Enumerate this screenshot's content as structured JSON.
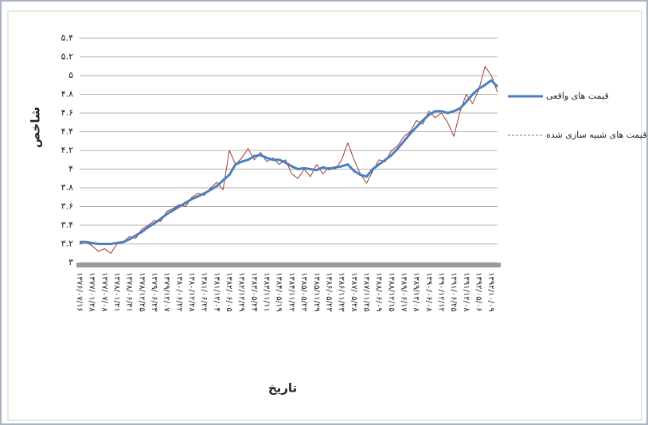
{
  "chart_data": {
    "type": "line",
    "ylabel": "شاخص",
    "xlabel": "تاریخ",
    "categories": [
      "۱۳۷۶/۰۷/۱۶",
      null,
      "۱۳۷۷/۰۱/۲۸",
      null,
      "۱۳۷۷/۰۷/۰۸",
      null,
      "۱۳۷۸/۰۱/۲۱",
      null,
      "۱۳۷۸/۰۶/۳۱",
      null,
      "۱۳۷۸/۱۲/۲۵",
      null,
      "۱۳۷۹/۰۶/۲۳",
      null,
      "۱۳۷۹/۱۲/۰۷",
      null,
      "۱۳۸۰/۰۶/۲۲",
      null,
      "۱۳۸۰/۱۲/۲۸",
      null,
      "۱۳۸۱/۰۶/۲۲",
      null,
      "۱۳۸۱/۱۲/۰۴",
      null,
      "۱۳۸۲/۰۶/۰۵",
      null,
      "۱۳۸۲/۱۲/۲۹",
      null,
      "۱۳۸۳/۰۵/۲۴",
      null,
      "۱۳۸۳/۱۱/۱۱",
      null,
      "۱۳۸۴/۰۵/۱۹",
      null,
      "۱۳۸۴/۱۱/۲۲",
      null,
      "۱۳۸۵/۰۵/۲۲",
      null,
      "۱۳۸۵/۱۱/۲۹",
      null,
      "۱۳۸۶/۰۵/۲۳",
      null,
      "۱۳۸۶/۱۱/۲۳",
      null,
      "۱۳۸۷/۰۵/۲۸",
      null,
      "۱۳۸۷/۱۱/۲۵",
      null,
      "۱۳۸۸/۰۶/۰۹",
      null,
      "۱۳۸۸/۱۲/۱۵",
      null,
      "۱۳۸۹/۰۶/۱۷",
      null,
      "۱۳۸۹/۱۲/۰۸",
      null,
      "۱۳۹۰/۰۶/۰۸",
      null,
      "۱۳۹۰/۱۲/۱۲",
      null,
      "۱۳۹۱/۰۶/۲۵",
      null,
      "۱۳۹۱/۱۲/۰۸",
      null,
      "۱۳۹۲/۰۵/۰۶",
      null,
      "۱۳۹۲/۱۰/۰۹",
      null
    ],
    "series": [
      {
        "name": "قیمت های واقعی",
        "color": "#4a7ec0",
        "width": 3,
        "dashed": false,
        "values": [
          3.22,
          3.22,
          3.21,
          3.2,
          3.2,
          3.2,
          3.21,
          3.22,
          3.25,
          3.29,
          3.33,
          3.38,
          3.42,
          3.47,
          3.52,
          3.56,
          3.6,
          3.64,
          3.68,
          3.71,
          3.74,
          3.78,
          3.82,
          3.88,
          3.94,
          4.05,
          4.08,
          4.1,
          4.14,
          4.15,
          4.12,
          4.1,
          4.1,
          4.07,
          4.03,
          4.0,
          4.01,
          4.0,
          3.99,
          4.02,
          4.0,
          4.02,
          4.03,
          4.05,
          3.98,
          3.94,
          3.92,
          4.0,
          4.05,
          4.1,
          4.15,
          4.22,
          4.3,
          4.38,
          4.45,
          4.52,
          4.58,
          4.62,
          4.62,
          4.6,
          4.62,
          4.65,
          4.72,
          4.8,
          4.86,
          4.9,
          4.95,
          4.88
        ]
      },
      {
        "name": "قیمت های شبیه سازی شده",
        "color": "#a03a30",
        "width": 1,
        "dashed": true,
        "values": [
          3.2,
          3.22,
          3.18,
          3.12,
          3.15,
          3.1,
          3.2,
          3.22,
          3.28,
          3.26,
          3.36,
          3.4,
          3.45,
          3.44,
          3.55,
          3.58,
          3.62,
          3.6,
          3.7,
          3.74,
          3.72,
          3.8,
          3.86,
          3.78,
          4.2,
          4.05,
          4.12,
          4.22,
          4.1,
          4.18,
          4.08,
          4.12,
          4.05,
          4.1,
          3.95,
          3.9,
          4.0,
          3.92,
          4.05,
          3.95,
          4.02,
          4.0,
          4.1,
          4.28,
          4.1,
          3.95,
          3.85,
          3.98,
          4.1,
          4.08,
          4.2,
          4.25,
          4.35,
          4.4,
          4.52,
          4.48,
          4.62,
          4.55,
          4.6,
          4.5,
          4.35,
          4.62,
          4.8,
          4.7,
          4.85,
          5.1,
          5.0,
          4.82
        ]
      }
    ],
    "ylim": [
      3,
      5.4
    ],
    "yticks": [
      {
        "value": 3,
        "label": "۳"
      },
      {
        "value": 3.2,
        "label": "۳.۲"
      },
      {
        "value": 3.4,
        "label": "۳.۴"
      },
      {
        "value": 3.6,
        "label": "۳.۶"
      },
      {
        "value": 3.8,
        "label": "۳.۸"
      },
      {
        "value": 4,
        "label": "۴"
      },
      {
        "value": 4.2,
        "label": "۴.۲"
      },
      {
        "value": 4.4,
        "label": "۴.۴"
      },
      {
        "value": 4.6,
        "label": "۴.۶"
      },
      {
        "value": 4.8,
        "label": "۴.۸"
      },
      {
        "value": 5,
        "label": "۵"
      },
      {
        "value": 5.2,
        "label": "۵.۲"
      },
      {
        "value": 5.4,
        "label": "۵.۴"
      }
    ],
    "grid": true
  }
}
